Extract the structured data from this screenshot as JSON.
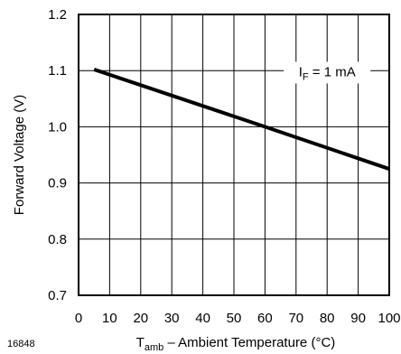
{
  "chart_data": {
    "type": "line",
    "xlabel": {
      "main": "T",
      "sub": "amb",
      "rest": " – Ambient Temperature (°C)"
    },
    "ylabel": "Forward Voltage (V)",
    "xlim": [
      0,
      100
    ],
    "ylim": [
      0.7,
      1.2
    ],
    "xticks": [
      {
        "v": 0,
        "label": "0"
      },
      {
        "v": 10,
        "label": "10"
      },
      {
        "v": 20,
        "label": "20"
      },
      {
        "v": 30,
        "label": "30"
      },
      {
        "v": 40,
        "label": "40"
      },
      {
        "v": 50,
        "label": "50"
      },
      {
        "v": 60,
        "label": "60"
      },
      {
        "v": 70,
        "label": "70"
      },
      {
        "v": 80,
        "label": "80"
      },
      {
        "v": 90,
        "label": "90"
      },
      {
        "v": 100,
        "label": "100"
      }
    ],
    "yticks": [
      {
        "v": 0.7,
        "label": "0.7"
      },
      {
        "v": 0.8,
        "label": "0.8"
      },
      {
        "v": 0.9,
        "label": "0.9"
      },
      {
        "v": 1.0,
        "label": "1.0"
      },
      {
        "v": 1.1,
        "label": "1.1"
      },
      {
        "v": 1.2,
        "label": "1.2"
      }
    ],
    "grid": true,
    "series": [
      {
        "x": [
          5,
          60,
          100
        ],
        "y": [
          1.102,
          1.0,
          0.925
        ]
      }
    ],
    "annotation": {
      "main": "I",
      "sub": "F",
      "rest": " = 1 mA",
      "at": [
        80,
        1.09
      ]
    },
    "figure_id": "16848"
  }
}
